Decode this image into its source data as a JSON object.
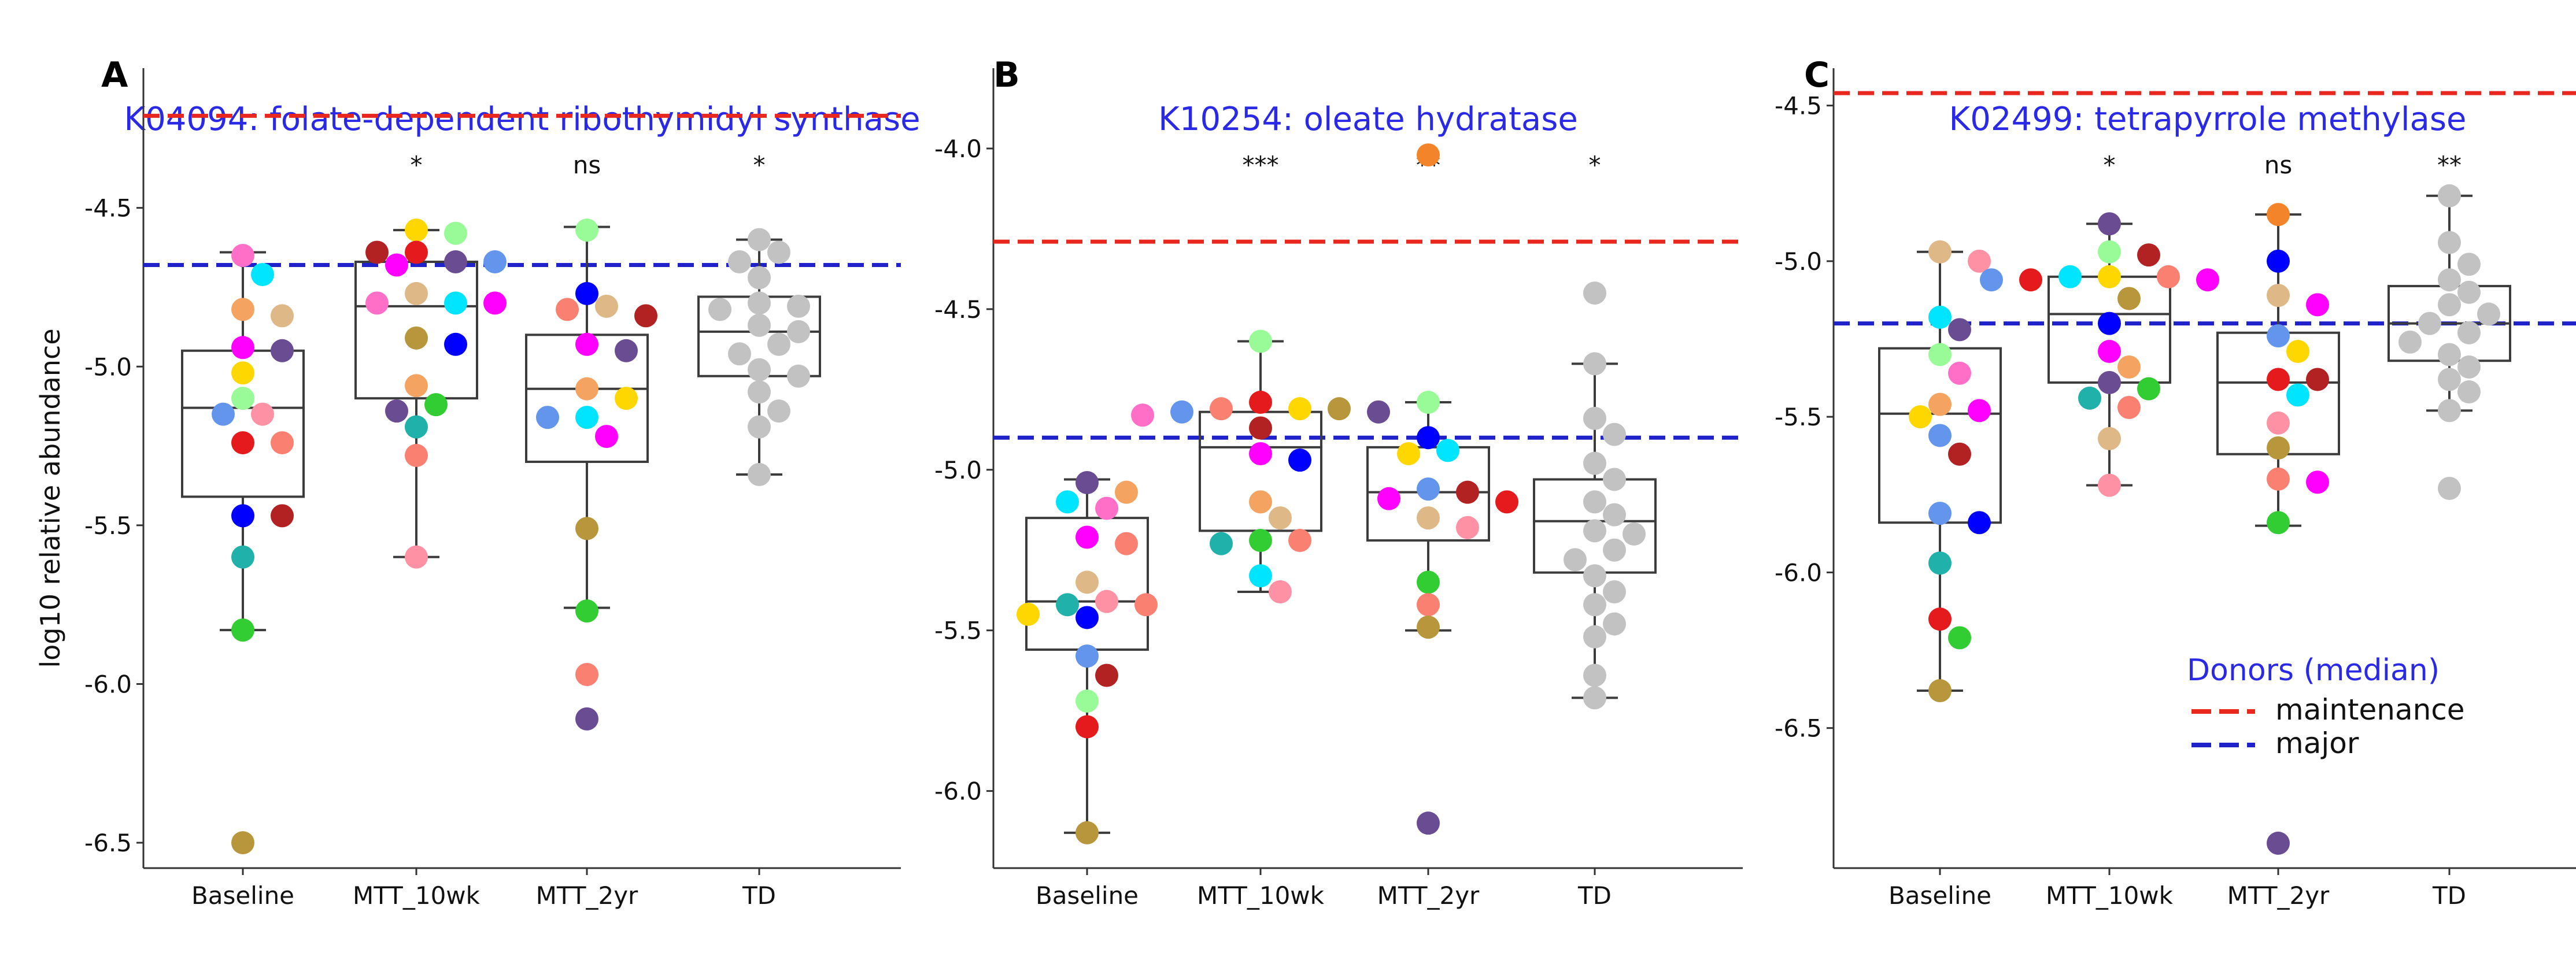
{
  "ylabel": "log10 relative abundance",
  "legend": {
    "title": "Donors (median)",
    "entries": [
      {
        "label": "maintenance",
        "color": "#e8271f"
      },
      {
        "label": "major",
        "color": "#1f22c9"
      }
    ]
  },
  "colors": {
    "title": "#2a2ae6",
    "maintenance": "#e8271f",
    "major": "#1f22c9",
    "td_points": "#c2c2c2",
    "box": "#3c3c3c"
  },
  "chart_data": [
    {
      "panel": "A",
      "type": "box-strip",
      "title": "K04094: folate-dependent ribothymidyl synthase",
      "categories": [
        "Baseline",
        "MTT_10wk",
        "MTT_2yr",
        "TD"
      ],
      "significance": [
        "",
        "*",
        "ns",
        "*"
      ],
      "ylim": [
        -6.58,
        -4.06
      ],
      "yticks": [
        -6.5,
        -6.0,
        -5.5,
        -5.0,
        -4.5
      ],
      "ytick_labels": [
        "-6.5",
        "-6.0",
        "-5.5",
        "-5.0",
        "-4.5"
      ],
      "reference_lines": {
        "maintenance": -4.21,
        "major": -4.68
      },
      "boxes": [
        {
          "whislo": -5.83,
          "q1": -5.41,
          "med": -5.13,
          "q3": -4.95,
          "whishi": -4.64
        },
        {
          "whislo": -5.6,
          "q1": -5.1,
          "med": -4.81,
          "q3": -4.67,
          "whishi": -4.57
        },
        {
          "whislo": -5.76,
          "q1": -5.3,
          "med": -5.07,
          "q3": -4.9,
          "whishi": -4.56
        },
        {
          "whislo": -5.34,
          "q1": -5.03,
          "med": -4.89,
          "q3": -4.78,
          "whishi": -4.6
        }
      ],
      "points": [
        [
          [
            -4.65,
            "#ff6ec7"
          ],
          [
            -4.71,
            "#00e5ff"
          ],
          [
            -4.82,
            "#f4a460"
          ],
          [
            -4.84,
            "#deb887"
          ],
          [
            -4.94,
            "#ff00ff"
          ],
          [
            -4.95,
            "#6a4c93"
          ],
          [
            -5.02,
            "#ffd700"
          ],
          [
            -5.1,
            "#98fb98"
          ],
          [
            -5.15,
            "#ff91a4"
          ],
          [
            -5.15,
            "#6495ed"
          ],
          [
            -5.24,
            "#e41a1c"
          ],
          [
            -5.24,
            "#fa8072"
          ],
          [
            -5.47,
            "#0000ff"
          ],
          [
            -5.47,
            "#b22222"
          ],
          [
            -5.6,
            "#20b2aa"
          ],
          [
            -5.83,
            "#32cd32"
          ],
          [
            -6.5,
            "#b8963c"
          ]
        ],
        [
          [
            -4.57,
            "#ffd700"
          ],
          [
            -4.58,
            "#98fb98"
          ],
          [
            -4.64,
            "#e41a1c"
          ],
          [
            -4.64,
            "#b22222"
          ],
          [
            -4.67,
            "#6a4c93"
          ],
          [
            -4.67,
            "#6495ed"
          ],
          [
            -4.68,
            "#ff00ff"
          ],
          [
            -4.77,
            "#deb887"
          ],
          [
            -4.8,
            "#00e5ff"
          ],
          [
            -4.8,
            "#ff6ec7"
          ],
          [
            -4.8,
            "#ff00ff"
          ],
          [
            -4.91,
            "#b8963c"
          ],
          [
            -4.93,
            "#0000ff"
          ],
          [
            -5.06,
            "#f4a460"
          ],
          [
            -5.12,
            "#32cd32"
          ],
          [
            -5.14,
            "#6a4c93"
          ],
          [
            -5.19,
            "#20b2aa"
          ],
          [
            -5.28,
            "#fa8072"
          ],
          [
            -5.6,
            "#ff91a4"
          ]
        ],
        [
          [
            -4.57,
            "#98fb98"
          ],
          [
            -4.77,
            "#0000ff"
          ],
          [
            -4.81,
            "#deb887"
          ],
          [
            -4.82,
            "#fa8072"
          ],
          [
            -4.84,
            "#b22222"
          ],
          [
            -4.93,
            "#ff00ff"
          ],
          [
            -4.95,
            "#6a4c93"
          ],
          [
            -5.07,
            "#f4a460"
          ],
          [
            -5.1,
            "#ffd700"
          ],
          [
            -5.16,
            "#00e5ff"
          ],
          [
            -5.16,
            "#6495ed"
          ],
          [
            -5.22,
            "#ff00ff"
          ],
          [
            -5.51,
            "#b8963c"
          ],
          [
            -5.77,
            "#32cd32"
          ],
          [
            -5.97,
            "#fa8072"
          ],
          [
            -6.11,
            "#6a4c93"
          ]
        ],
        [
          [
            -4.6,
            "#c2c2c2"
          ],
          [
            -4.64,
            "#c2c2c2"
          ],
          [
            -4.67,
            "#c2c2c2"
          ],
          [
            -4.72,
            "#c2c2c2"
          ],
          [
            -4.8,
            "#c2c2c2"
          ],
          [
            -4.81,
            "#c2c2c2"
          ],
          [
            -4.82,
            "#c2c2c2"
          ],
          [
            -4.87,
            "#c2c2c2"
          ],
          [
            -4.89,
            "#c2c2c2"
          ],
          [
            -4.93,
            "#c2c2c2"
          ],
          [
            -4.96,
            "#c2c2c2"
          ],
          [
            -5.01,
            "#c2c2c2"
          ],
          [
            -5.03,
            "#c2c2c2"
          ],
          [
            -5.08,
            "#c2c2c2"
          ],
          [
            -5.14,
            "#c2c2c2"
          ],
          [
            -5.19,
            "#c2c2c2"
          ],
          [
            -5.34,
            "#c2c2c2"
          ]
        ]
      ]
    },
    {
      "panel": "B",
      "type": "box-strip",
      "title": "K10254: oleate hydratase",
      "categories": [
        "Baseline",
        "MTT_10wk",
        "MTT_2yr",
        "TD"
      ],
      "significance": [
        "",
        "***",
        "**",
        "*"
      ],
      "ylim": [
        -6.24,
        -3.75
      ],
      "yticks": [
        -6.0,
        -5.5,
        -5.0,
        -4.5,
        -4.0
      ],
      "ytick_labels": [
        "-6.0",
        "-5.5",
        "-5.0",
        "-4.5",
        "-4.0"
      ],
      "reference_lines": {
        "maintenance": -4.29,
        "major": -4.9
      },
      "boxes": [
        {
          "whislo": -6.13,
          "q1": -5.56,
          "med": -5.41,
          "q3": -5.15,
          "whishi": -5.03
        },
        {
          "whislo": -5.38,
          "q1": -5.19,
          "med": -4.93,
          "q3": -4.82,
          "whishi": -4.6
        },
        {
          "whislo": -5.5,
          "q1": -5.22,
          "med": -5.07,
          "q3": -4.93,
          "whishi": -4.79
        },
        {
          "whislo": -5.71,
          "q1": -5.32,
          "med": -5.16,
          "q3": -5.03,
          "whishi": -4.67
        }
      ],
      "points": [
        [
          [
            -5.04,
            "#6a4c93"
          ],
          [
            -5.07,
            "#f4a460"
          ],
          [
            -5.1,
            "#00e5ff"
          ],
          [
            -5.12,
            "#ff6ec7"
          ],
          [
            -5.21,
            "#ff00ff"
          ],
          [
            -5.23,
            "#fa8072"
          ],
          [
            -5.35,
            "#deb887"
          ],
          [
            -5.41,
            "#ff91a4"
          ],
          [
            -5.42,
            "#20b2aa"
          ],
          [
            -5.42,
            "#fa8072"
          ],
          [
            -5.45,
            "#ffd700"
          ],
          [
            -5.46,
            "#0000ff"
          ],
          [
            -5.58,
            "#6495ed"
          ],
          [
            -5.64,
            "#b22222"
          ],
          [
            -5.72,
            "#98fb98"
          ],
          [
            -5.8,
            "#e41a1c"
          ],
          [
            -6.13,
            "#b8963c"
          ]
        ],
        [
          [
            -4.6,
            "#98fb98"
          ],
          [
            -4.79,
            "#e41a1c"
          ],
          [
            -4.81,
            "#ffd700"
          ],
          [
            -4.81,
            "#fa8072"
          ],
          [
            -4.81,
            "#b8963c"
          ],
          [
            -4.82,
            "#6495ed"
          ],
          [
            -4.82,
            "#6a4c93"
          ],
          [
            -4.83,
            "#ff6ec7"
          ],
          [
            -4.87,
            "#b22222"
          ],
          [
            -4.95,
            "#ff00ff"
          ],
          [
            -4.97,
            "#0000ff"
          ],
          [
            -5.1,
            "#f4a460"
          ],
          [
            -5.15,
            "#deb887"
          ],
          [
            -5.22,
            "#32cd32"
          ],
          [
            -5.22,
            "#fa8072"
          ],
          [
            -5.23,
            "#20b2aa"
          ],
          [
            -5.33,
            "#00e5ff"
          ],
          [
            -5.38,
            "#ff91a4"
          ]
        ],
        [
          [
            -4.02,
            "#f4842a"
          ],
          [
            -4.79,
            "#98fb98"
          ],
          [
            -4.9,
            "#0000ff"
          ],
          [
            -4.94,
            "#00e5ff"
          ],
          [
            -4.95,
            "#ffd700"
          ],
          [
            -5.06,
            "#6495ed"
          ],
          [
            -5.07,
            "#b22222"
          ],
          [
            -5.09,
            "#ff00ff"
          ],
          [
            -5.1,
            "#e41a1c"
          ],
          [
            -5.15,
            "#deb887"
          ],
          [
            -5.18,
            "#ff91a4"
          ],
          [
            -5.35,
            "#32cd32"
          ],
          [
            -5.42,
            "#fa8072"
          ],
          [
            -5.49,
            "#b8963c"
          ],
          [
            -6.1,
            "#6a4c93"
          ]
        ],
        [
          [
            -4.45,
            "#c2c2c2"
          ],
          [
            -4.67,
            "#c2c2c2"
          ],
          [
            -4.84,
            "#c2c2c2"
          ],
          [
            -4.89,
            "#c2c2c2"
          ],
          [
            -4.98,
            "#c2c2c2"
          ],
          [
            -5.03,
            "#c2c2c2"
          ],
          [
            -5.1,
            "#c2c2c2"
          ],
          [
            -5.14,
            "#c2c2c2"
          ],
          [
            -5.19,
            "#c2c2c2"
          ],
          [
            -5.2,
            "#c2c2c2"
          ],
          [
            -5.25,
            "#c2c2c2"
          ],
          [
            -5.28,
            "#c2c2c2"
          ],
          [
            -5.33,
            "#c2c2c2"
          ],
          [
            -5.38,
            "#c2c2c2"
          ],
          [
            -5.42,
            "#c2c2c2"
          ],
          [
            -5.48,
            "#c2c2c2"
          ],
          [
            -5.52,
            "#c2c2c2"
          ],
          [
            -5.64,
            "#c2c2c2"
          ],
          [
            -5.71,
            "#c2c2c2"
          ]
        ]
      ]
    },
    {
      "panel": "C",
      "type": "box-strip",
      "title": "K02499: tetrapyrrole methylase",
      "categories": [
        "Baseline",
        "MTT_10wk",
        "MTT_2yr",
        "TD"
      ],
      "significance": [
        "",
        "*",
        "ns",
        "**"
      ],
      "ylim": [
        -6.95,
        -4.38
      ],
      "yticks": [
        -6.5,
        -6.0,
        -5.5,
        -5.0,
        -4.5
      ],
      "ytick_labels": [
        "-6.5",
        "-6.0",
        "-5.5",
        "-5.0",
        "-4.5"
      ],
      "reference_lines": {
        "maintenance": -4.46,
        "major": -5.2
      },
      "boxes": [
        {
          "whislo": -6.38,
          "q1": -5.84,
          "med": -5.49,
          "q3": -5.28,
          "whishi": -4.97
        },
        {
          "whislo": -5.72,
          "q1": -5.39,
          "med": -5.17,
          "q3": -5.05,
          "whishi": -4.88
        },
        {
          "whislo": -5.85,
          "q1": -5.62,
          "med": -5.39,
          "q3": -5.23,
          "whishi": -4.85
        },
        {
          "whislo": -5.48,
          "q1": -5.32,
          "med": -5.2,
          "q3": -5.08,
          "whishi": -4.79
        }
      ],
      "points": [
        [
          [
            -4.97,
            "#deb887"
          ],
          [
            -5.0,
            "#ff91a4"
          ],
          [
            -5.18,
            "#00e5ff"
          ],
          [
            -5.22,
            "#6a4c93"
          ],
          [
            -5.3,
            "#98fb98"
          ],
          [
            -5.36,
            "#ff6ec7"
          ],
          [
            -5.46,
            "#f4a460"
          ],
          [
            -5.48,
            "#ff00ff"
          ],
          [
            -5.5,
            "#ffd700"
          ],
          [
            -5.56,
            "#6495ed"
          ],
          [
            -5.62,
            "#b22222"
          ],
          [
            -5.81,
            "#6495ed"
          ],
          [
            -5.84,
            "#0000ff"
          ],
          [
            -5.97,
            "#20b2aa"
          ],
          [
            -6.15,
            "#e41a1c"
          ],
          [
            -6.21,
            "#32cd32"
          ],
          [
            -6.38,
            "#b8963c"
          ]
        ],
        [
          [
            -4.88,
            "#6a4c93"
          ],
          [
            -4.97,
            "#98fb98"
          ],
          [
            -4.98,
            "#b22222"
          ],
          [
            -5.05,
            "#ffd700"
          ],
          [
            -5.05,
            "#00e5ff"
          ],
          [
            -5.05,
            "#fa8072"
          ],
          [
            -5.06,
            "#e41a1c"
          ],
          [
            -5.06,
            "#ff00ff"
          ],
          [
            -5.06,
            "#6495ed"
          ],
          [
            -5.12,
            "#b8963c"
          ],
          [
            -5.2,
            "#0000ff"
          ],
          [
            -5.29,
            "#ff00ff"
          ],
          [
            -5.34,
            "#f4a460"
          ],
          [
            -5.39,
            "#6a4c93"
          ],
          [
            -5.41,
            "#32cd32"
          ],
          [
            -5.44,
            "#20b2aa"
          ],
          [
            -5.47,
            "#fa8072"
          ],
          [
            -5.57,
            "#deb887"
          ],
          [
            -5.72,
            "#ff91a4"
          ]
        ],
        [
          [
            -4.85,
            "#f4842a"
          ],
          [
            -5.0,
            "#0000ff"
          ],
          [
            -5.11,
            "#deb887"
          ],
          [
            -5.14,
            "#ff00ff"
          ],
          [
            -5.24,
            "#6495ed"
          ],
          [
            -5.29,
            "#ffd700"
          ],
          [
            -5.38,
            "#e41a1c"
          ],
          [
            -5.38,
            "#b22222"
          ],
          [
            -5.43,
            "#00e5ff"
          ],
          [
            -5.52,
            "#ff91a4"
          ],
          [
            -5.6,
            "#b8963c"
          ],
          [
            -5.7,
            "#fa8072"
          ],
          [
            -5.71,
            "#ff00ff"
          ],
          [
            -5.84,
            "#32cd32"
          ],
          [
            -6.87,
            "#6a4c93"
          ]
        ],
        [
          [
            -4.79,
            "#c2c2c2"
          ],
          [
            -4.94,
            "#c2c2c2"
          ],
          [
            -5.01,
            "#c2c2c2"
          ],
          [
            -5.06,
            "#c2c2c2"
          ],
          [
            -5.1,
            "#c2c2c2"
          ],
          [
            -5.14,
            "#c2c2c2"
          ],
          [
            -5.17,
            "#c2c2c2"
          ],
          [
            -5.2,
            "#c2c2c2"
          ],
          [
            -5.23,
            "#c2c2c2"
          ],
          [
            -5.26,
            "#c2c2c2"
          ],
          [
            -5.3,
            "#c2c2c2"
          ],
          [
            -5.34,
            "#c2c2c2"
          ],
          [
            -5.38,
            "#c2c2c2"
          ],
          [
            -5.42,
            "#c2c2c2"
          ],
          [
            -5.48,
            "#c2c2c2"
          ],
          [
            -5.73,
            "#c2c2c2"
          ]
        ]
      ]
    }
  ]
}
